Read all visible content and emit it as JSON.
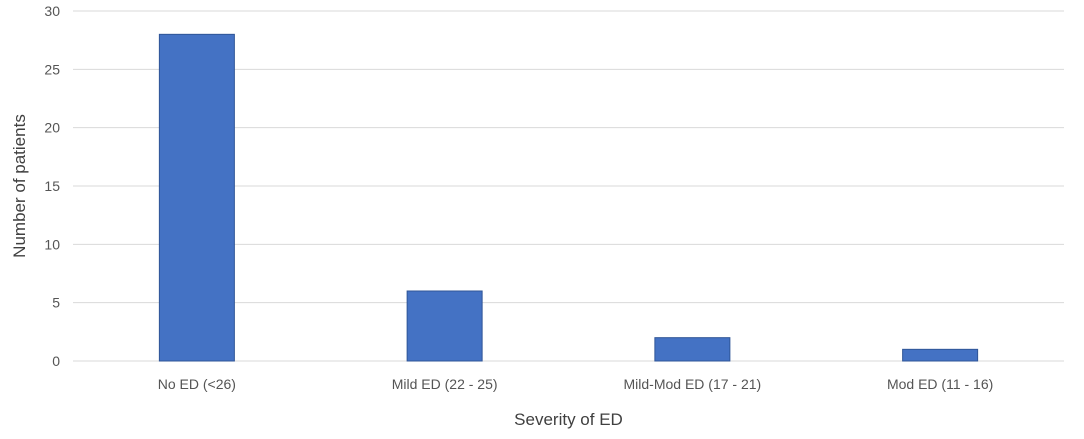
{
  "chart_data": {
    "type": "bar",
    "categories": [
      "No ED (<26)",
      "Mild ED (22 - 25)",
      "Mild-Mod ED (17 - 21)",
      "Mod ED (11 - 16)"
    ],
    "values": [
      28,
      6,
      2,
      1
    ],
    "xlabel": "Severity of ED",
    "ylabel": "Number of patients",
    "ylim": [
      0,
      30
    ],
    "yticks": [
      0,
      5,
      10,
      15,
      20,
      25,
      30
    ],
    "grid": true,
    "legend": "none",
    "colors": {
      "bar": "#4472c4"
    }
  }
}
